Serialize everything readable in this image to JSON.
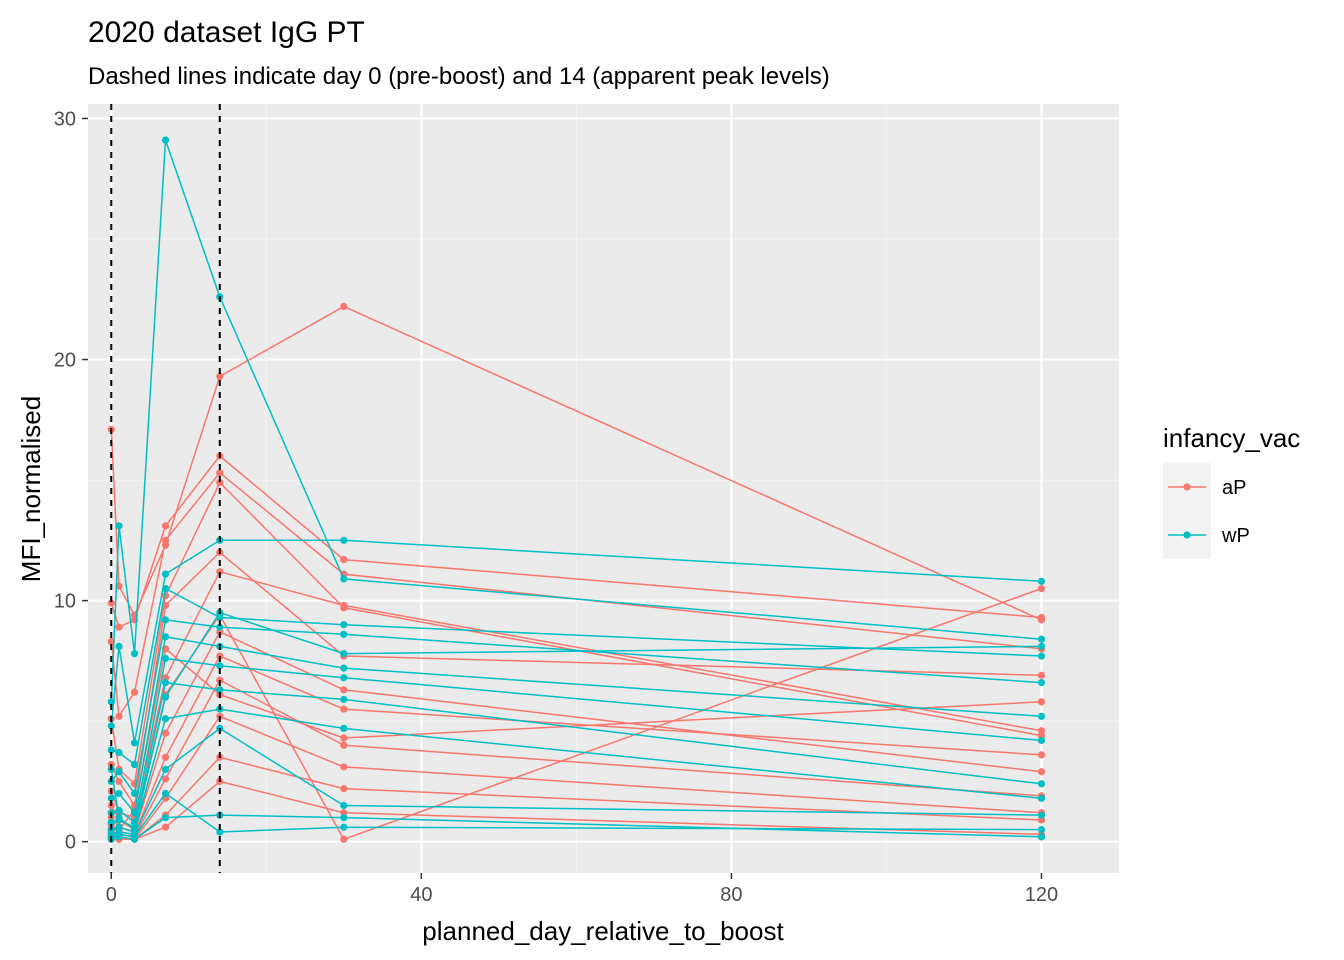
{
  "chart_data": {
    "type": "line",
    "title": "2020 dataset IgG PT",
    "subtitle": "Dashed lines indicate day 0 (pre-boost) and 14 (apparent peak levels)",
    "xlabel": "planned_day_relative_to_boost",
    "ylabel": "MFI_normalised",
    "xlim": [
      -3,
      130
    ],
    "ylim": [
      -1.3,
      30.6
    ],
    "x_ticks": [
      0,
      40,
      80,
      120
    ],
    "x_tick_labels": [
      "0",
      "40",
      "80",
      "120"
    ],
    "x_minor": [
      20,
      60,
      100
    ],
    "y_ticks": [
      0,
      10,
      20,
      30
    ],
    "y_tick_labels": [
      "0",
      "10",
      "20",
      "30"
    ],
    "y_minor": [
      5,
      15,
      25
    ],
    "vlines": [
      0,
      14
    ],
    "legend": {
      "title": "infancy_vac",
      "entries": [
        {
          "label": "aP",
          "color": "#F8766D"
        },
        {
          "label": "wP",
          "color": "#00BFC4"
        }
      ]
    },
    "series": [
      {
        "group": "aP",
        "x": [
          0,
          1,
          3,
          7,
          14,
          30,
          120
        ],
        "y": [
          17.1,
          10.6,
          9.4,
          12.3,
          19.3,
          22.2,
          9.2
        ]
      },
      {
        "group": "aP",
        "x": [
          0,
          1,
          3,
          7,
          14,
          30,
          120
        ],
        "y": [
          9.9,
          8.9,
          9.2,
          13.1,
          16.0,
          11.7,
          9.3
        ]
      },
      {
        "group": "aP",
        "x": [
          0,
          1,
          3,
          7,
          14,
          30,
          120
        ],
        "y": [
          8.3,
          5.2,
          6.2,
          12.5,
          15.3,
          11.1,
          8.0
        ]
      },
      {
        "group": "aP",
        "x": [
          0,
          1,
          3,
          7,
          14,
          30,
          120
        ],
        "y": [
          5.1,
          3.0,
          2.4,
          10.2,
          14.9,
          9.7,
          4.4
        ]
      },
      {
        "group": "aP",
        "x": [
          0,
          1,
          3,
          7,
          14,
          30,
          120
        ],
        "y": [
          3.2,
          2.5,
          1.5,
          9.8,
          12.0,
          7.7,
          6.9
        ]
      },
      {
        "group": "aP",
        "x": [
          0,
          1,
          3,
          7,
          14,
          30,
          120
        ],
        "y": [
          2.1,
          1.2,
          1.0,
          6.8,
          11.2,
          9.8,
          4.6
        ]
      },
      {
        "group": "aP",
        "x": [
          0,
          1,
          3,
          7,
          14,
          30,
          120
        ],
        "y": [
          1.5,
          0.9,
          0.5,
          6.1,
          9.4,
          0.1,
          10.5
        ]
      },
      {
        "group": "aP",
        "x": [
          0,
          1,
          3,
          7,
          14,
          30,
          120
        ],
        "y": [
          1.0,
          0.6,
          0.4,
          4.5,
          8.7,
          6.3,
          2.9
        ]
      },
      {
        "group": "aP",
        "x": [
          0,
          1,
          3,
          7,
          14,
          30,
          120
        ],
        "y": [
          0.7,
          0.4,
          0.3,
          3.5,
          7.7,
          5.5,
          3.6
        ]
      },
      {
        "group": "aP",
        "x": [
          0,
          1,
          3,
          7,
          14,
          30,
          120
        ],
        "y": [
          0.4,
          0.3,
          0.2,
          2.6,
          6.7,
          4.0,
          1.9
        ]
      },
      {
        "group": "aP",
        "x": [
          0,
          1,
          3,
          7,
          14,
          30,
          120
        ],
        "y": [
          0.3,
          0.2,
          0.1,
          1.8,
          5.2,
          3.1,
          1.2
        ]
      },
      {
        "group": "aP",
        "x": [
          0,
          1,
          3,
          7,
          14,
          30,
          120
        ],
        "y": [
          0.2,
          0.1,
          0.1,
          1.1,
          3.5,
          2.2,
          0.9
        ]
      },
      {
        "group": "aP",
        "x": [
          0,
          1,
          3,
          7,
          14,
          30,
          120
        ],
        "y": [
          0.1,
          0.1,
          0.1,
          0.6,
          2.5,
          1.2,
          0.3
        ]
      },
      {
        "group": "aP",
        "x": [
          0,
          1,
          3,
          7,
          14,
          30,
          120
        ],
        "y": [
          0.5,
          0.5,
          1.3,
          8.0,
          6.1,
          4.3,
          5.8
        ]
      },
      {
        "group": "wP",
        "x": [
          0,
          1,
          3,
          7,
          14,
          30,
          120
        ],
        "y": [
          5.8,
          13.1,
          7.8,
          29.1,
          22.6,
          10.9,
          8.4
        ]
      },
      {
        "group": "wP",
        "x": [
          0,
          1,
          3,
          7,
          14,
          30,
          120
        ],
        "y": [
          4.8,
          8.1,
          4.1,
          11.1,
          12.5,
          12.5,
          10.8
        ]
      },
      {
        "group": "wP",
        "x": [
          0,
          1,
          3,
          7,
          14,
          30,
          120
        ],
        "y": [
          3.8,
          3.7,
          3.2,
          10.5,
          9.3,
          9.0,
          7.7
        ]
      },
      {
        "group": "wP",
        "x": [
          0,
          1,
          3,
          7,
          14,
          30,
          120
        ],
        "y": [
          2.5,
          2.9,
          2.0,
          9.2,
          8.9,
          8.6,
          6.6
        ]
      },
      {
        "group": "wP",
        "x": [
          0,
          1,
          3,
          7,
          14,
          30,
          120
        ],
        "y": [
          1.8,
          2.0,
          1.2,
          8.5,
          8.1,
          7.2,
          5.2
        ]
      },
      {
        "group": "wP",
        "x": [
          0,
          1,
          3,
          7,
          14,
          30,
          120
        ],
        "y": [
          1.2,
          1.3,
          0.8,
          7.6,
          7.3,
          6.8,
          4.2
        ]
      },
      {
        "group": "wP",
        "x": [
          0,
          1,
          3,
          7,
          14,
          30,
          120
        ],
        "y": [
          0.8,
          0.9,
          0.6,
          6.6,
          6.3,
          5.9,
          2.4
        ]
      },
      {
        "group": "wP",
        "x": [
          0,
          1,
          3,
          7,
          14,
          30,
          120
        ],
        "y": [
          0.5,
          0.6,
          0.4,
          5.1,
          5.5,
          4.7,
          1.8
        ]
      },
      {
        "group": "wP",
        "x": [
          0,
          1,
          3,
          7,
          14,
          30,
          120
        ],
        "y": [
          0.3,
          0.4,
          0.3,
          3.0,
          4.7,
          1.5,
          1.1
        ]
      },
      {
        "group": "wP",
        "x": [
          0,
          1,
          3,
          7,
          14,
          30,
          120
        ],
        "y": [
          0.2,
          0.3,
          0.2,
          2.0,
          0.4,
          0.6,
          0.5
        ]
      },
      {
        "group": "wP",
        "x": [
          0,
          1,
          3,
          7,
          14,
          30,
          120
        ],
        "y": [
          0.1,
          0.2,
          0.1,
          1.0,
          1.1,
          1.0,
          0.2
        ]
      },
      {
        "group": "wP",
        "x": [
          0,
          1,
          3,
          7,
          14,
          30,
          120
        ],
        "y": [
          3.0,
          1.0,
          0.5,
          6.0,
          9.5,
          7.8,
          8.1
        ]
      }
    ]
  }
}
